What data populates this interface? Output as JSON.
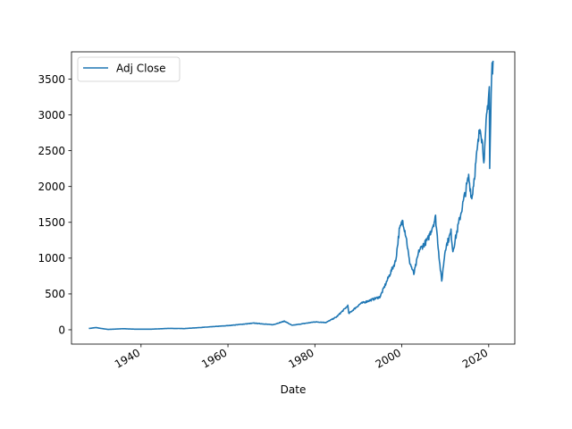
{
  "chart_data": {
    "type": "line",
    "title": "",
    "xlabel": "Date",
    "ylabel": "",
    "xlim": [
      "1924-01-01",
      "2026-01-01"
    ],
    "ylim": [
      -200,
      3880
    ],
    "x_ticks": [
      "1940",
      "1960",
      "1980",
      "2000",
      "2020"
    ],
    "y_ticks": [
      "0",
      "500",
      "1000",
      "1500",
      "2000",
      "2500",
      "3000",
      "3500"
    ],
    "grid": false,
    "legend_position": "top-left",
    "series": [
      {
        "name": "Adj Close",
        "color": "#1f77b4",
        "points": [
          [
            "1928-01-01",
            18
          ],
          [
            "1929-09-01",
            31
          ],
          [
            "1930-06-01",
            22
          ],
          [
            "1932-06-01",
            5
          ],
          [
            "1936-01-01",
            15
          ],
          [
            "1938-03-01",
            9
          ],
          [
            "1942-04-01",
            8
          ],
          [
            "1946-05-01",
            19
          ],
          [
            "1950-01-01",
            17
          ],
          [
            "1955-01-01",
            37
          ],
          [
            "1960-01-01",
            58
          ],
          [
            "1966-01-01",
            93
          ],
          [
            "1970-05-01",
            70
          ],
          [
            "1973-01-01",
            120
          ],
          [
            "1974-10-01",
            62
          ],
          [
            "1980-01-01",
            110
          ],
          [
            "1982-08-01",
            102
          ],
          [
            "1985-01-01",
            180
          ],
          [
            "1987-08-01",
            335
          ],
          [
            "1987-10-20",
            225
          ],
          [
            "1990-07-01",
            365
          ],
          [
            "1995-01-01",
            460
          ],
          [
            "1997-01-01",
            740
          ],
          [
            "1998-08-01",
            960
          ],
          [
            "1999-06-01",
            1380
          ],
          [
            "2000-03-24",
            1527
          ],
          [
            "2001-01-01",
            1300
          ],
          [
            "2001-09-21",
            965
          ],
          [
            "2002-10-09",
            777
          ],
          [
            "2004-01-01",
            1110
          ],
          [
            "2006-01-01",
            1260
          ],
          [
            "2007-10-09",
            1565
          ],
          [
            "2008-10-10",
            900
          ],
          [
            "2009-03-09",
            677
          ],
          [
            "2010-01-01",
            1130
          ],
          [
            "2011-04-29",
            1364
          ],
          [
            "2011-10-03",
            1100
          ],
          [
            "2013-01-01",
            1460
          ],
          [
            "2015-05-21",
            2130
          ],
          [
            "2016-02-11",
            1830
          ],
          [
            "2018-01-26",
            2873
          ],
          [
            "2018-12-24",
            2350
          ],
          [
            "2019-07-01",
            2960
          ],
          [
            "2020-02-19",
            3386
          ],
          [
            "2020-03-23",
            2237
          ],
          [
            "2020-09-02",
            3580
          ],
          [
            "2020-12-31",
            3756
          ]
        ]
      }
    ]
  }
}
